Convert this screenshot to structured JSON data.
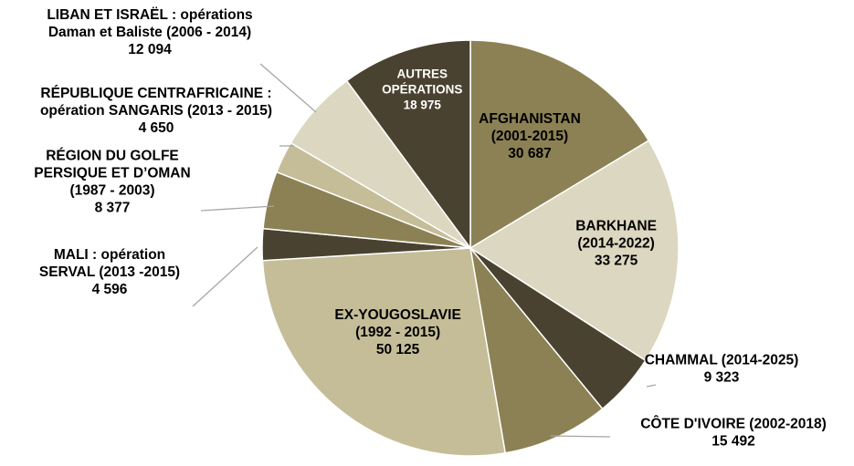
{
  "chart_data": {
    "type": "pie",
    "slices": [
      {
        "lines": [
          "AFGHANISTAN",
          "(2001-2015)"
        ],
        "value_label": "30 687",
        "value": 30687,
        "color": "#8c8154",
        "text_color": "#000000"
      },
      {
        "lines": [
          "BARKHANE",
          "(2014-2022)"
        ],
        "value_label": "33 275",
        "value": 33275,
        "color": "#dcd7c0",
        "text_color": "#000000"
      },
      {
        "lines": [
          "CHAMMAL (2014-2025)"
        ],
        "value_label": "9 323",
        "value": 9323,
        "color": "#4a4230",
        "text_color": "#000000"
      },
      {
        "lines": [
          "CÔTE D'IVOIRE (2002-2018)"
        ],
        "value_label": "15 492",
        "value": 15492,
        "color": "#8c8154",
        "text_color": "#000000"
      },
      {
        "lines": [
          "EX-YOUGOSLAVIE",
          "(1992 - 2015)"
        ],
        "value_label": "50 125",
        "value": 50125,
        "color": "#c4bd98",
        "text_color": "#000000"
      },
      {
        "lines": [
          "MALI : opération",
          "SERVAL (2013 -2015)"
        ],
        "value_label": "4 596",
        "value": 4596,
        "color": "#4a4230",
        "text_color": "#000000"
      },
      {
        "lines": [
          "RÉGION DU GOLFE",
          "PERSIQUE ET D’OMAN",
          "(1987 - 2003)"
        ],
        "value_label": "8 377",
        "value": 8377,
        "color": "#8c8154",
        "text_color": "#000000"
      },
      {
        "lines": [
          "RÉPUBLIQUE CENTRAFRICAINE :",
          "opération SANGARIS (2013 - 2015)"
        ],
        "value_label": "4 650",
        "value": 4650,
        "color": "#c4bd98",
        "text_color": "#000000"
      },
      {
        "lines": [
          "LIBAN ET ISRAËL : opérations",
          "Daman et Baliste (2006 - 2014)"
        ],
        "value_label": "12 094",
        "value": 12094,
        "color": "#dcd7c0",
        "text_color": "#000000"
      },
      {
        "lines": [
          "AUTRES",
          "OPÉRATIONS"
        ],
        "value_label": "18 975",
        "value": 18975,
        "color": "#4a4230",
        "text_color": "#ffffff"
      }
    ],
    "start_angle_deg": 0,
    "direction": "clockwise",
    "legend": "none"
  }
}
